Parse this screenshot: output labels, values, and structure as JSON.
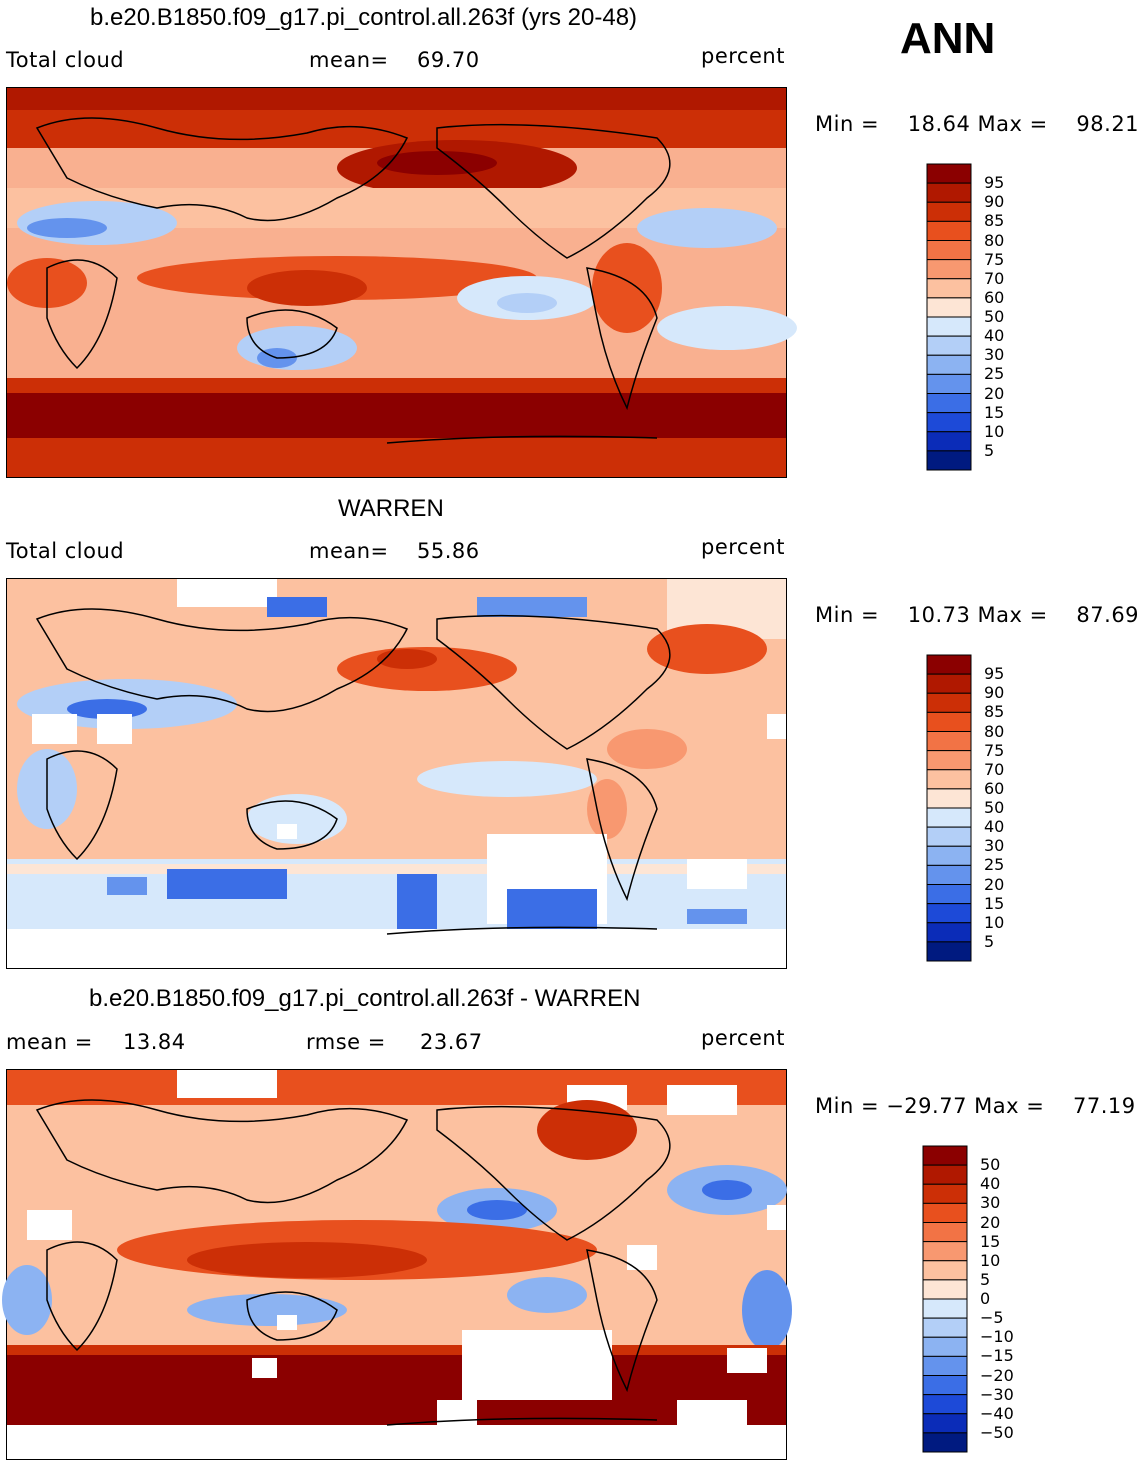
{
  "season": "ANN",
  "panels": [
    {
      "id": "model",
      "title": "b.e20.B1850.f09_g17.pi_control.all.263f (yrs 20-48)",
      "left_label": "Total cloud",
      "stat1_label": "mean=",
      "stat1_value": "69.70",
      "stat2_label": "",
      "stat2_value": "",
      "units": "percent",
      "minmax_label": "Min =    18.64 Max =    98.21",
      "colorbar": {
        "labels": [
          "95",
          "90",
          "85",
          "80",
          "75",
          "70",
          "60",
          "50",
          "40",
          "30",
          "25",
          "20",
          "15",
          "10",
          "5"
        ],
        "colors": [
          "#8b0000",
          "#b01800",
          "#cc2f06",
          "#e8501e",
          "#f27345",
          "#f89870",
          "#fcc1a0",
          "#fde5d5",
          "#d6e8fb",
          "#b3cff7",
          "#8cb3f2",
          "#6493ed",
          "#3b6ee6",
          "#1d4ad8",
          "#0b2cb8",
          "#001a80"
        ]
      }
    },
    {
      "id": "obs",
      "title": "WARREN",
      "left_label": "Total cloud",
      "stat1_label": "mean=",
      "stat1_value": "55.86",
      "stat2_label": "",
      "stat2_value": "",
      "units": "percent",
      "minmax_label": "Min =    10.73 Max =    87.69",
      "colorbar": {
        "labels": [
          "95",
          "90",
          "85",
          "80",
          "75",
          "70",
          "60",
          "50",
          "40",
          "30",
          "25",
          "20",
          "15",
          "10",
          "5"
        ],
        "colors": [
          "#8b0000",
          "#b01800",
          "#cc2f06",
          "#e8501e",
          "#f27345",
          "#f89870",
          "#fcc1a0",
          "#fde5d5",
          "#d6e8fb",
          "#b3cff7",
          "#8cb3f2",
          "#6493ed",
          "#3b6ee6",
          "#1d4ad8",
          "#0b2cb8",
          "#001a80"
        ]
      }
    },
    {
      "id": "diff",
      "title": "b.e20.B1850.f09_g17.pi_control.all.263f - WARREN",
      "left_label": "",
      "stat1_label": "mean =",
      "stat1_value": "13.84",
      "stat2_label": "rmse =",
      "stat2_value": "23.67",
      "units": "percent",
      "minmax_label": "Min = −29.77 Max =    77.19",
      "colorbar": {
        "labels": [
          "50",
          "40",
          "30",
          "20",
          "15",
          "10",
          "5",
          "0",
          "−5",
          "−10",
          "−15",
          "−20",
          "−30",
          "−40",
          "−50"
        ],
        "colors": [
          "#8b0000",
          "#b01800",
          "#cc2f06",
          "#e8501e",
          "#f27345",
          "#f89870",
          "#fcc1a0",
          "#fde5d5",
          "#d6e8fb",
          "#b3cff7",
          "#8cb3f2",
          "#6493ed",
          "#3b6ee6",
          "#1d4ad8",
          "#0b2cb8",
          "#001a80"
        ]
      }
    }
  ],
  "chart_data": [
    {
      "type": "heatmap",
      "title": "b.e20.B1850.f09_g17.pi_control.all.263f (yrs 20-48)",
      "variable": "Total cloud",
      "units": "percent",
      "mean": 69.7,
      "min": 18.64,
      "max": 98.21,
      "contour_levels": [
        5,
        10,
        15,
        20,
        25,
        30,
        40,
        50,
        60,
        70,
        75,
        80,
        85,
        90,
        95
      ]
    },
    {
      "type": "heatmap",
      "title": "WARREN",
      "variable": "Total cloud",
      "units": "percent",
      "mean": 55.86,
      "min": 10.73,
      "max": 87.69,
      "contour_levels": [
        5,
        10,
        15,
        20,
        25,
        30,
        40,
        50,
        60,
        70,
        75,
        80,
        85,
        90,
        95
      ]
    },
    {
      "type": "heatmap",
      "title": "b.e20.B1850.f09_g17.pi_control.all.263f - WARREN",
      "units": "percent",
      "mean": 13.84,
      "rmse": 23.67,
      "min": -29.77,
      "max": 77.19,
      "contour_levels": [
        -50,
        -40,
        -30,
        -20,
        -15,
        -10,
        -5,
        0,
        5,
        10,
        15,
        20,
        30,
        40,
        50
      ]
    }
  ]
}
